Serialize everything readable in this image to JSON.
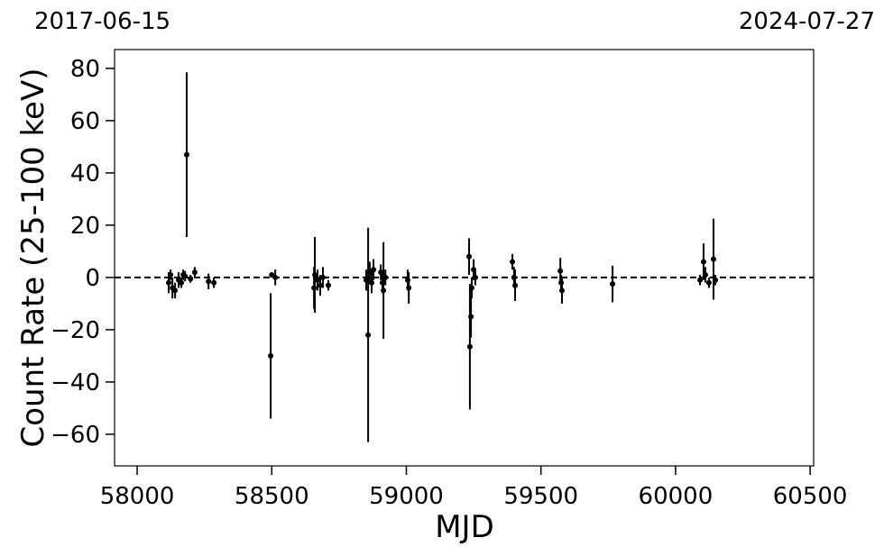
{
  "chart_data": {
    "type": "scatter",
    "top_left_label": "2017-06-15",
    "top_right_label": "2024-07-27",
    "x_label": "MJD",
    "y_label": "Count Rate (25-100 keV)",
    "xlim": [
      57916,
      60513
    ],
    "ylim": [
      -72.1,
      87.2
    ],
    "xticks": [
      58000,
      58500,
      59000,
      59500,
      60000,
      60500
    ],
    "yticks": [
      {
        "value": -60,
        "label": "−60"
      },
      {
        "value": -40,
        "label": "−40"
      },
      {
        "value": -20,
        "label": "−20"
      },
      0,
      20,
      40,
      60,
      80
    ],
    "reference_line": 0,
    "series": [
      {
        "color": "#000000",
        "x": [
          58117,
          58124,
          58131,
          58141,
          58154,
          58164,
          58171,
          58178,
          58184,
          58198,
          58214,
          58265,
          58285,
          58496,
          58500,
          58513,
          58657,
          58660,
          58670,
          58680,
          58690,
          58710,
          58851,
          58858,
          58864,
          58871,
          58878,
          58905,
          58911,
          58915,
          58922,
          59005,
          59009,
          59233,
          59236,
          59240,
          59243,
          59250,
          59256,
          59394,
          59400,
          59404,
          59572,
          59575,
          59578,
          59766,
          60091,
          60104,
          60111,
          60124,
          60141,
          60148
        ],
        "values": [
          -2,
          1,
          -4,
          -5,
          -1,
          -2,
          1,
          0.5,
          47,
          -0.5,
          2,
          -1.5,
          -2,
          -30,
          1,
          0,
          -4,
          1,
          -1,
          -3,
          0,
          -3,
          -1,
          -22,
          2,
          -2,
          3,
          2,
          -2,
          -5,
          0,
          -1,
          -4,
          8,
          -26.5,
          -15,
          -4,
          3,
          0,
          6,
          0,
          -3,
          2.5,
          -2,
          -5,
          -2.5,
          -1,
          6,
          1,
          -2,
          7,
          -1
        ],
        "errors": [
          4,
          2,
          4,
          3,
          3,
          2,
          2,
          2,
          31.5,
          1.5,
          2,
          3,
          2,
          24,
          1,
          3,
          8,
          14.5,
          4,
          4,
          4,
          2,
          4,
          41,
          4,
          4,
          4,
          3,
          4,
          18.5,
          3,
          4,
          6,
          7,
          24,
          8,
          4,
          4,
          3,
          3,
          4,
          6,
          5,
          3,
          5,
          7,
          2,
          7,
          3,
          2,
          15.5,
          2
        ]
      }
    ]
  }
}
